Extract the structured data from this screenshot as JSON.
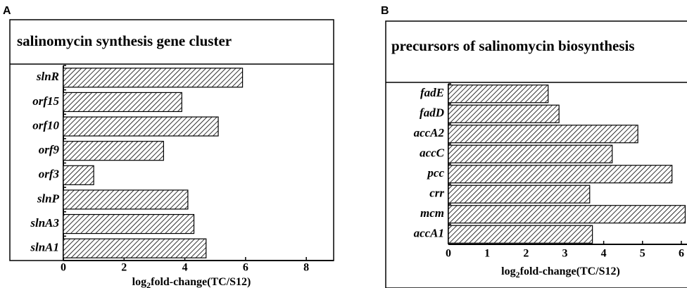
{
  "chart_data": [
    {
      "type": "bar",
      "panel": "A",
      "title": "salinomycin synthesis gene cluster",
      "categories": [
        "slnR",
        "orf15",
        "orf10",
        "orf9",
        "orf3",
        "slnP",
        "slnA3",
        "slnA1"
      ],
      "values": [
        5.9,
        3.9,
        5.1,
        3.3,
        1.0,
        4.1,
        4.3,
        4.7
      ],
      "xlim": [
        0,
        8.9
      ],
      "xticks": [
        0,
        2,
        4,
        6,
        8
      ],
      "xlabel_parts": [
        "log",
        "2",
        "fold-change(TC/S12)"
      ],
      "color": "#000000"
    },
    {
      "type": "bar",
      "panel": "B",
      "title": "precursors of salinomycin biosynthesis",
      "categories": [
        "fadE",
        "fadD",
        "accA2",
        "accC",
        "pcc",
        "crr",
        "mcm",
        "accA1"
      ],
      "values": [
        2.57,
        2.85,
        4.88,
        4.22,
        5.76,
        3.64,
        6.1,
        3.71
      ],
      "xlim": [
        0,
        6.4
      ],
      "xticks": [
        0,
        1,
        2,
        3,
        4,
        5,
        6
      ],
      "xlabel_parts": [
        "log",
        "2",
        "fold-change(TC/S12)"
      ],
      "color": "#000000"
    }
  ]
}
